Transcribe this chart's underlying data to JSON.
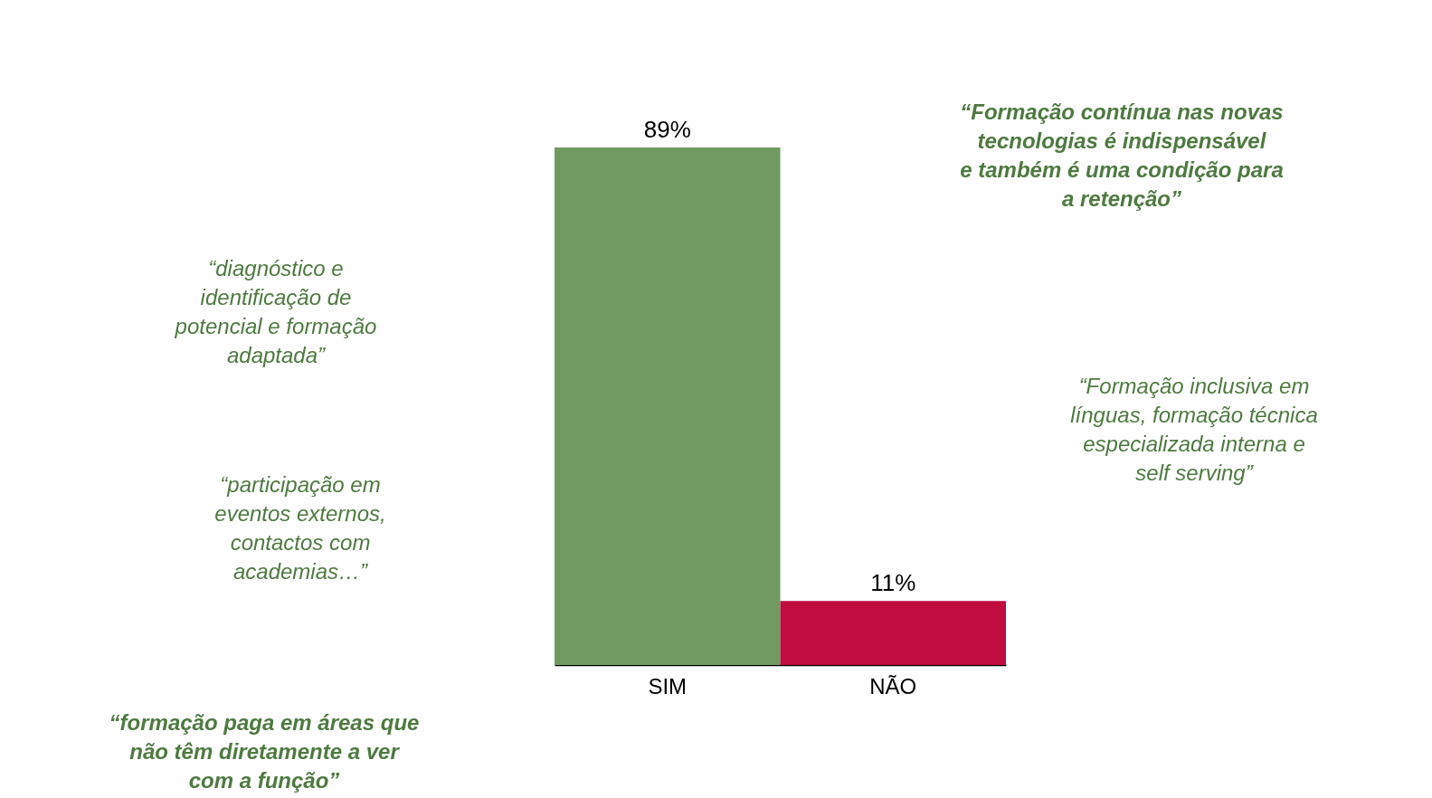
{
  "chart_data": {
    "type": "bar",
    "categories": [
      "SIM",
      "NÃO"
    ],
    "values": [
      89,
      11
    ],
    "colors": [
      "#709a61",
      "#c00c3f"
    ],
    "value_labels": [
      "89%",
      "11%"
    ],
    "grid": false,
    "tick_labels": "x",
    "annotations": [
      "“Formação contínua nas novas tecnologias é indispensável e também é uma condição para a retenção”",
      "“diagnóstico e identificação de potencial e formação adaptada”",
      "“Formação inclusiva em línguas, formação técnica especializada interna e self serving”",
      "“participação em eventos externos, contactos com academias…”",
      "“formação paga em áreas que não têm diretamente a ver com a função”"
    ]
  }
}
